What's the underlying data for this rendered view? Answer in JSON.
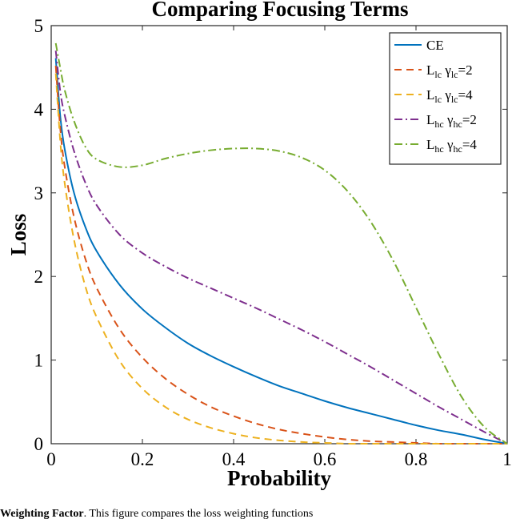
{
  "chart_data": {
    "type": "line",
    "title": "Comparing Focusing Terms",
    "xlabel": "Probability",
    "ylabel": "Loss",
    "xlim": [
      0,
      1
    ],
    "ylim": [
      0,
      5
    ],
    "xticks": [
      "0",
      "0.2",
      "0.4",
      "0.6",
      "0.8",
      "1"
    ],
    "yticks": [
      "0",
      "1",
      "2",
      "3",
      "4",
      "5"
    ],
    "grid": false,
    "legend_position": "top-right",
    "x": [
      0.01,
      0.02,
      0.03,
      0.05,
      0.075,
      0.1,
      0.15,
      0.2,
      0.25,
      0.3,
      0.35,
      0.4,
      0.45,
      0.5,
      0.55,
      0.6,
      0.65,
      0.7,
      0.75,
      0.8,
      0.85,
      0.9,
      0.95,
      1.0
    ],
    "series": [
      {
        "name": "CE",
        "base": "CE",
        "sub": "",
        "gsub": "",
        "gval": "",
        "color": "#0072BD",
        "dash": "",
        "values": [
          4.61,
          3.91,
          3.51,
          3.0,
          2.59,
          2.3,
          1.9,
          1.61,
          1.39,
          1.2,
          1.05,
          0.92,
          0.8,
          0.69,
          0.6,
          0.51,
          0.43,
          0.36,
          0.29,
          0.22,
          0.16,
          0.11,
          0.05,
          0.0
        ]
      },
      {
        "name": "L_lc γ_lc=2",
        "base": "L",
        "sub": "lc",
        "gsub": "lc",
        "gval": "=2",
        "color": "#D95319",
        "dash": "9,6",
        "values": [
          4.52,
          3.76,
          3.3,
          2.71,
          2.21,
          1.86,
          1.37,
          1.03,
          0.78,
          0.59,
          0.44,
          0.33,
          0.24,
          0.17,
          0.12,
          0.08,
          0.05,
          0.03,
          0.02,
          0.01,
          0.0,
          0.0,
          0.0,
          0.0
        ]
      },
      {
        "name": "L_lc γ_lc=4",
        "base": "L",
        "sub": "lc",
        "gsub": "lc",
        "gval": "=4",
        "color": "#EDB120",
        "dash": "9,6",
        "values": [
          4.43,
          3.61,
          3.1,
          2.44,
          1.88,
          1.51,
          0.99,
          0.66,
          0.44,
          0.29,
          0.19,
          0.12,
          0.07,
          0.04,
          0.02,
          0.01,
          0.0,
          0.0,
          0.0,
          0.0,
          0.0,
          0.0,
          0.0,
          0.0
        ]
      },
      {
        "name": "L_hc γ_hc=2",
        "base": "L",
        "sub": "hc",
        "gsub": "hc",
        "gval": "=2",
        "color": "#7E2F8E",
        "dash": "10,4,2,4",
        "values": [
          4.7,
          4.21,
          3.92,
          3.5,
          3.12,
          2.85,
          2.5,
          2.28,
          2.12,
          1.98,
          1.86,
          1.74,
          1.62,
          1.49,
          1.36,
          1.22,
          1.07,
          0.92,
          0.76,
          0.6,
          0.44,
          0.29,
          0.14,
          0.0
        ]
      },
      {
        "name": "L_hc γ_hc=4",
        "base": "L",
        "sub": "hc",
        "gsub": "hc",
        "gval": "=4",
        "color": "#77AC30",
        "dash": "10,4,2,4",
        "values": [
          4.79,
          4.49,
          4.22,
          3.86,
          3.55,
          3.4,
          3.31,
          3.33,
          3.41,
          3.47,
          3.51,
          3.53,
          3.53,
          3.5,
          3.42,
          3.27,
          3.02,
          2.66,
          2.19,
          1.63,
          1.07,
          0.56,
          0.2,
          0.0
        ]
      }
    ]
  },
  "caption": {
    "bold": "Weighting Factor",
    "text": "This figure compares the loss weighting functions"
  }
}
